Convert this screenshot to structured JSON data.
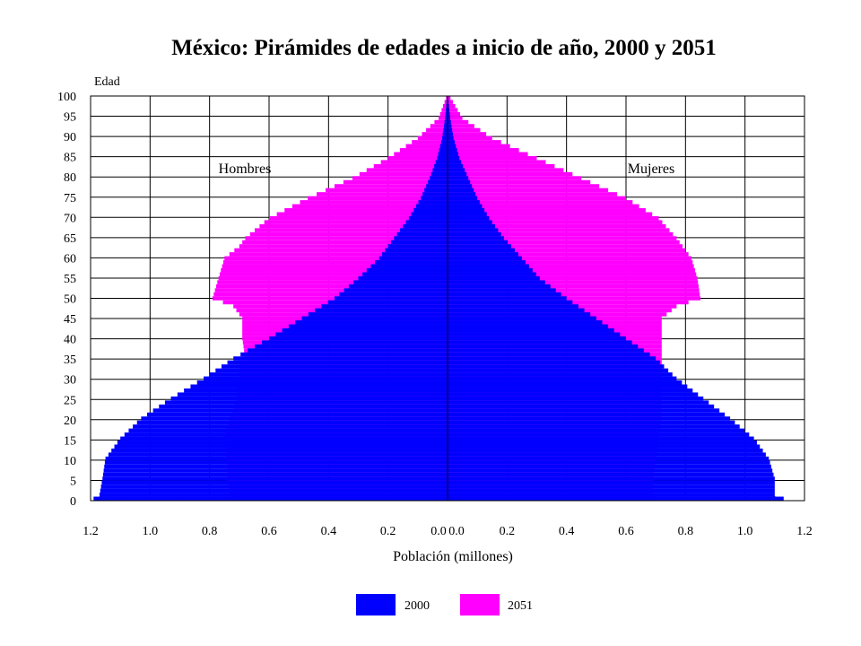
{
  "chart_data": {
    "type": "bar",
    "title": "México: Pirámides de edades a inicio de año, 2000 y 2051",
    "ylabel": "Edad",
    "xlabel": "Población (millones)",
    "left_label": "Hombres",
    "right_label": "Mujeres",
    "xlim": [
      -1.2,
      1.2
    ],
    "ylim": [
      0,
      100
    ],
    "x_ticks": [
      "1.2",
      "1.0",
      "0.8",
      "0.6",
      "0.4",
      "0.2",
      "0.0",
      "0.0",
      "0.2",
      "0.4",
      "0.6",
      "0.8",
      "1.0",
      "1.2"
    ],
    "y_ticks": [
      "0",
      "5",
      "10",
      "15",
      "20",
      "25",
      "30",
      "35",
      "40",
      "45",
      "50",
      "55",
      "60",
      "65",
      "70",
      "75",
      "80",
      "85",
      "90",
      "95",
      "100"
    ],
    "grid": true,
    "legend_position": "bottom",
    "series": [
      {
        "name": "2000",
        "color": "#0000ff",
        "hombres_anchors": [
          [
            0,
            1.19
          ],
          [
            1,
            1.17
          ],
          [
            5,
            1.16
          ],
          [
            10,
            1.15
          ],
          [
            15,
            1.1
          ],
          [
            20,
            1.03
          ],
          [
            25,
            0.93
          ],
          [
            30,
            0.82
          ],
          [
            35,
            0.72
          ],
          [
            40,
            0.6
          ],
          [
            45,
            0.49
          ],
          [
            50,
            0.38
          ],
          [
            55,
            0.3
          ],
          [
            60,
            0.23
          ],
          [
            65,
            0.18
          ],
          [
            70,
            0.13
          ],
          [
            75,
            0.09
          ],
          [
            80,
            0.06
          ],
          [
            85,
            0.035
          ],
          [
            90,
            0.018
          ],
          [
            95,
            0.008
          ],
          [
            100,
            0.002
          ]
        ],
        "mujeres_anchors": [
          [
            0,
            1.13
          ],
          [
            1,
            1.1
          ],
          [
            5,
            1.1
          ],
          [
            10,
            1.08
          ],
          [
            15,
            1.03
          ],
          [
            20,
            0.95
          ],
          [
            25,
            0.86
          ],
          [
            30,
            0.77
          ],
          [
            35,
            0.7
          ],
          [
            40,
            0.6
          ],
          [
            45,
            0.5
          ],
          [
            50,
            0.4
          ],
          [
            55,
            0.31
          ],
          [
            60,
            0.25
          ],
          [
            65,
            0.19
          ],
          [
            70,
            0.14
          ],
          [
            75,
            0.1
          ],
          [
            80,
            0.07
          ],
          [
            85,
            0.04
          ],
          [
            90,
            0.02
          ],
          [
            95,
            0.009
          ],
          [
            100,
            0.002
          ]
        ]
      },
      {
        "name": "2051",
        "color": "#ff00ff",
        "hombres_anchors": [
          [
            0,
            0.73
          ],
          [
            5,
            0.74
          ],
          [
            10,
            0.74
          ],
          [
            15,
            0.75
          ],
          [
            20,
            0.73
          ],
          [
            25,
            0.71
          ],
          [
            30,
            0.7
          ],
          [
            34,
            0.7
          ],
          [
            35,
            0.68
          ],
          [
            40,
            0.69
          ],
          [
            45,
            0.69
          ],
          [
            48,
            0.72
          ],
          [
            50,
            0.79
          ],
          [
            55,
            0.77
          ],
          [
            60,
            0.75
          ],
          [
            63,
            0.7
          ],
          [
            65,
            0.68
          ],
          [
            70,
            0.6
          ],
          [
            75,
            0.47
          ],
          [
            80,
            0.32
          ],
          [
            85,
            0.2
          ],
          [
            90,
            0.1
          ],
          [
            95,
            0.03
          ],
          [
            100,
            0.005
          ]
        ],
        "mujeres_anchors": [
          [
            0,
            0.69
          ],
          [
            5,
            0.69
          ],
          [
            10,
            0.7
          ],
          [
            15,
            0.71
          ],
          [
            20,
            0.72
          ],
          [
            25,
            0.72
          ],
          [
            30,
            0.72
          ],
          [
            34,
            0.72
          ],
          [
            35,
            0.72
          ],
          [
            40,
            0.72
          ],
          [
            45,
            0.72
          ],
          [
            48,
            0.77
          ],
          [
            50,
            0.85
          ],
          [
            55,
            0.84
          ],
          [
            60,
            0.82
          ],
          [
            63,
            0.79
          ],
          [
            65,
            0.77
          ],
          [
            70,
            0.71
          ],
          [
            75,
            0.6
          ],
          [
            80,
            0.45
          ],
          [
            85,
            0.3
          ],
          [
            90,
            0.15
          ],
          [
            95,
            0.05
          ],
          [
            100,
            0.01
          ]
        ]
      }
    ]
  }
}
